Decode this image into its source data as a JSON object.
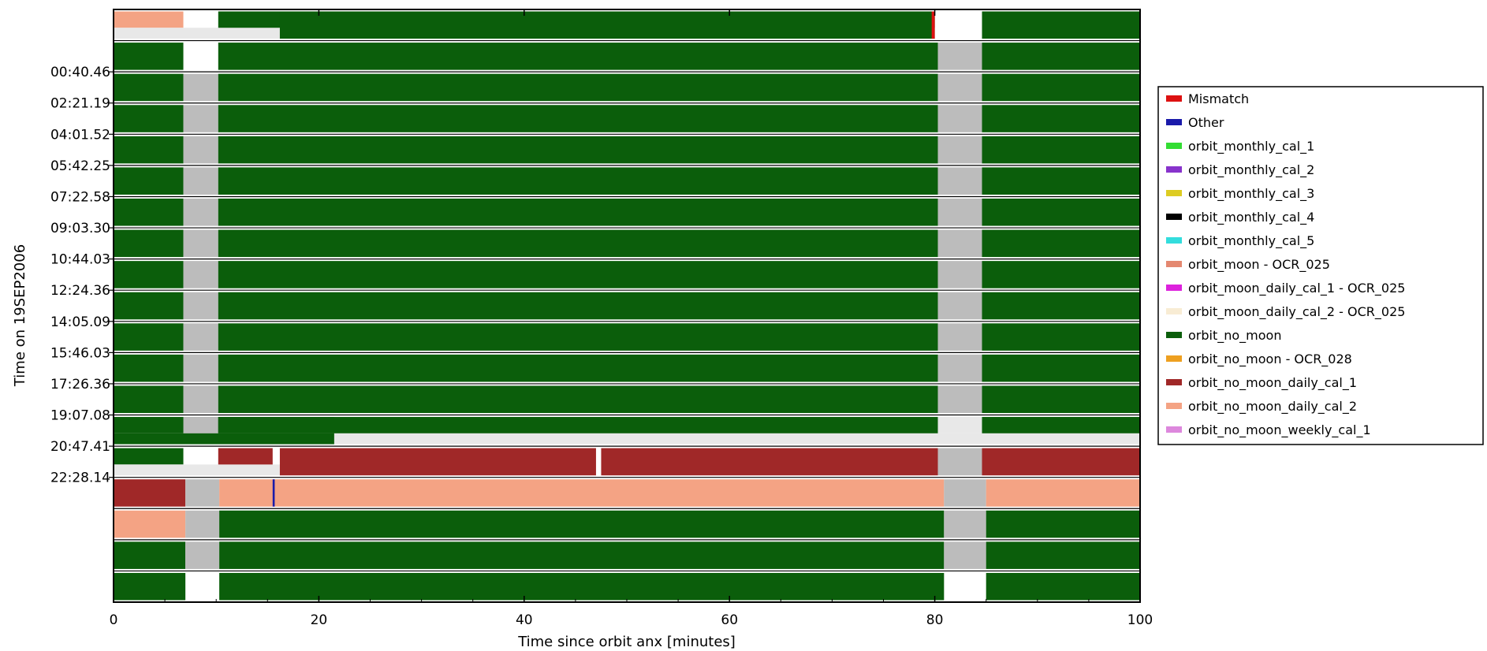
{
  "chart_data": {
    "type": "timeline",
    "title": "",
    "xlabel": "Time since orbit anx [minutes]",
    "ylabel": "Time on 19SEP2006",
    "xlim": [
      0,
      100
    ],
    "xticks": [
      0,
      20,
      40,
      60,
      80,
      100
    ],
    "ytick_labels": [
      "00:40.46",
      "02:21.19",
      "04:01.52",
      "05:42.25",
      "07:22.58",
      "09:03.30",
      "10:44.03",
      "12:24.36",
      "14:05.09",
      "15:46.03",
      "17:26.36",
      "19:07.08",
      "20:47.41",
      "22:28.14"
    ],
    "legend_position": "right",
    "categories": [
      {
        "key": "mismatch",
        "name": "Mismatch",
        "color": "#dd1111"
      },
      {
        "key": "other",
        "name": "Other",
        "color": "#1a1aaa"
      },
      {
        "key": "cal1",
        "name": "orbit_monthly_cal_1",
        "color": "#33dd33"
      },
      {
        "key": "cal2",
        "name": "orbit_monthly_cal_2",
        "color": "#8833cc"
      },
      {
        "key": "cal3",
        "name": "orbit_monthly_cal_3",
        "color": "#ddcc22"
      },
      {
        "key": "cal4",
        "name": "orbit_monthly_cal_4",
        "color": "#000000"
      },
      {
        "key": "cal5",
        "name": "orbit_monthly_cal_5",
        "color": "#33dddd"
      },
      {
        "key": "moon",
        "name": "orbit_moon - OCR_025",
        "color": "#e48870"
      },
      {
        "key": "moondaily1",
        "name": "orbit_moon_daily_cal_1 - OCR_025",
        "color": "#dd22dd"
      },
      {
        "key": "moondaily2",
        "name": "orbit_moon_daily_cal_2 - OCR_025",
        "color": "#f8ecd4"
      },
      {
        "key": "nomoon",
        "name": "orbit_no_moon",
        "color": "#0b5e0b"
      },
      {
        "key": "nomoon28",
        "name": "orbit_no_moon - OCR_028",
        "color": "#eea020"
      },
      {
        "key": "nmd1",
        "name": "orbit_no_moon_daily_cal_1",
        "color": "#a02828"
      },
      {
        "key": "nmd2",
        "name": "orbit_no_moon_daily_cal_2",
        "color": "#f4a384"
      },
      {
        "key": "nmw1",
        "name": "orbit_no_moon_weekly_cal_1",
        "color": "#dd88dd"
      }
    ],
    "gap_colors": {
      "gray": "#bcbcbc",
      "light": "#e8e8e8",
      "white": "#ffffff"
    },
    "rows": [
      {
        "segments": [
          {
            "start": 0,
            "end": 6.8,
            "cat": "nmd2",
            "part": "top"
          },
          {
            "start": 0,
            "end": 16.2,
            "cat": "light",
            "part": "bottom"
          },
          {
            "start": 10.2,
            "end": 80.0,
            "cat": "nomoon",
            "part": "top"
          },
          {
            "start": 16.2,
            "end": 80.0,
            "cat": "nomoon"
          },
          {
            "start": 79.7,
            "end": 80.0,
            "cat": "mismatch"
          },
          {
            "start": 84.6,
            "end": 100.0,
            "cat": "nomoon"
          }
        ]
      },
      {
        "segments": [
          {
            "start": 0,
            "end": 6.8,
            "cat": "nomoon"
          },
          {
            "start": 10.2,
            "end": 80.3,
            "cat": "nomoon"
          },
          {
            "start": 80.3,
            "end": 84.6,
            "cat": "gray"
          },
          {
            "start": 84.6,
            "end": 100.0,
            "cat": "nomoon"
          }
        ]
      },
      {
        "segments": [
          {
            "start": 0,
            "end": 6.8,
            "cat": "nomoon"
          },
          {
            "start": 6.8,
            "end": 10.2,
            "cat": "gray"
          },
          {
            "start": 10.2,
            "end": 80.3,
            "cat": "nomoon"
          },
          {
            "start": 80.3,
            "end": 84.6,
            "cat": "gray"
          },
          {
            "start": 84.6,
            "end": 100.0,
            "cat": "nomoon"
          }
        ]
      },
      {
        "segments": [
          {
            "start": 0,
            "end": 6.8,
            "cat": "nomoon"
          },
          {
            "start": 6.8,
            "end": 10.2,
            "cat": "gray"
          },
          {
            "start": 10.2,
            "end": 80.3,
            "cat": "nomoon"
          },
          {
            "start": 80.3,
            "end": 84.6,
            "cat": "gray"
          },
          {
            "start": 84.6,
            "end": 100.0,
            "cat": "nomoon"
          }
        ]
      },
      {
        "segments": [
          {
            "start": 0,
            "end": 6.8,
            "cat": "nomoon"
          },
          {
            "start": 6.8,
            "end": 10.2,
            "cat": "gray"
          },
          {
            "start": 10.2,
            "end": 80.3,
            "cat": "nomoon"
          },
          {
            "start": 80.3,
            "end": 84.6,
            "cat": "gray"
          },
          {
            "start": 84.6,
            "end": 100.0,
            "cat": "nomoon"
          }
        ]
      },
      {
        "segments": [
          {
            "start": 0,
            "end": 6.8,
            "cat": "nomoon"
          },
          {
            "start": 6.8,
            "end": 10.2,
            "cat": "gray"
          },
          {
            "start": 10.2,
            "end": 80.3,
            "cat": "nomoon"
          },
          {
            "start": 80.3,
            "end": 84.6,
            "cat": "gray"
          },
          {
            "start": 84.6,
            "end": 100.0,
            "cat": "nomoon"
          }
        ]
      },
      {
        "segments": [
          {
            "start": 0,
            "end": 6.8,
            "cat": "nomoon"
          },
          {
            "start": 6.8,
            "end": 10.2,
            "cat": "gray"
          },
          {
            "start": 10.2,
            "end": 80.3,
            "cat": "nomoon"
          },
          {
            "start": 80.3,
            "end": 84.6,
            "cat": "gray"
          },
          {
            "start": 84.6,
            "end": 100.0,
            "cat": "nomoon"
          }
        ]
      },
      {
        "segments": [
          {
            "start": 0,
            "end": 6.8,
            "cat": "nomoon"
          },
          {
            "start": 6.8,
            "end": 10.2,
            "cat": "gray"
          },
          {
            "start": 10.2,
            "end": 80.3,
            "cat": "nomoon"
          },
          {
            "start": 80.3,
            "end": 84.6,
            "cat": "gray"
          },
          {
            "start": 84.6,
            "end": 100.0,
            "cat": "nomoon"
          }
        ]
      },
      {
        "segments": [
          {
            "start": 0,
            "end": 6.8,
            "cat": "nomoon"
          },
          {
            "start": 6.8,
            "end": 10.2,
            "cat": "gray"
          },
          {
            "start": 10.2,
            "end": 80.3,
            "cat": "nomoon"
          },
          {
            "start": 80.3,
            "end": 84.6,
            "cat": "gray"
          },
          {
            "start": 84.6,
            "end": 100.0,
            "cat": "nomoon"
          }
        ]
      },
      {
        "segments": [
          {
            "start": 0,
            "end": 6.8,
            "cat": "nomoon"
          },
          {
            "start": 6.8,
            "end": 10.2,
            "cat": "gray"
          },
          {
            "start": 10.2,
            "end": 80.3,
            "cat": "nomoon"
          },
          {
            "start": 80.3,
            "end": 84.6,
            "cat": "gray"
          },
          {
            "start": 84.6,
            "end": 100.0,
            "cat": "nomoon"
          }
        ]
      },
      {
        "segments": [
          {
            "start": 0,
            "end": 6.8,
            "cat": "nomoon"
          },
          {
            "start": 6.8,
            "end": 10.2,
            "cat": "gray"
          },
          {
            "start": 10.2,
            "end": 80.3,
            "cat": "nomoon"
          },
          {
            "start": 80.3,
            "end": 84.6,
            "cat": "gray"
          },
          {
            "start": 84.6,
            "end": 100.0,
            "cat": "nomoon"
          }
        ]
      },
      {
        "segments": [
          {
            "start": 0,
            "end": 6.8,
            "cat": "nomoon"
          },
          {
            "start": 6.8,
            "end": 10.2,
            "cat": "gray"
          },
          {
            "start": 10.2,
            "end": 80.3,
            "cat": "nomoon"
          },
          {
            "start": 80.3,
            "end": 84.6,
            "cat": "gray"
          },
          {
            "start": 84.6,
            "end": 100.0,
            "cat": "nomoon"
          }
        ]
      },
      {
        "segments": [
          {
            "start": 0,
            "end": 6.8,
            "cat": "nomoon"
          },
          {
            "start": 6.8,
            "end": 10.2,
            "cat": "gray"
          },
          {
            "start": 10.2,
            "end": 80.3,
            "cat": "nomoon"
          },
          {
            "start": 80.3,
            "end": 84.6,
            "cat": "gray"
          },
          {
            "start": 84.6,
            "end": 100.0,
            "cat": "nomoon"
          }
        ]
      },
      {
        "segments": [
          {
            "start": 0,
            "end": 21.5,
            "cat": "nomoon",
            "part": "top"
          },
          {
            "start": 0,
            "end": 21.5,
            "cat": "nomoon",
            "part": "bottom"
          },
          {
            "start": 21.5,
            "end": 100.0,
            "cat": "light",
            "part": "bottom"
          },
          {
            "start": 6.8,
            "end": 10.2,
            "cat": "gray",
            "part": "top"
          },
          {
            "start": 10.2,
            "end": 80.3,
            "cat": "nomoon",
            "part": "top"
          },
          {
            "start": 80.3,
            "end": 84.6,
            "cat": "light",
            "part": "top"
          },
          {
            "start": 84.6,
            "end": 100.0,
            "cat": "nomoon",
            "part": "top"
          }
        ]
      },
      {
        "segments": [
          {
            "start": 0,
            "end": 6.8,
            "cat": "nomoon",
            "part": "top"
          },
          {
            "start": 0,
            "end": 16.2,
            "cat": "light",
            "part": "bottom"
          },
          {
            "start": 10.2,
            "end": 15.5,
            "cat": "nmd1",
            "part": "top"
          },
          {
            "start": 16.2,
            "end": 47.0,
            "cat": "nmd1"
          },
          {
            "start": 47.5,
            "end": 80.3,
            "cat": "nmd1"
          },
          {
            "start": 80.3,
            "end": 84.6,
            "cat": "gray"
          },
          {
            "start": 84.6,
            "end": 100.0,
            "cat": "nmd1"
          }
        ]
      },
      {
        "segments": [
          {
            "start": 0,
            "end": 7.0,
            "cat": "nmd1"
          },
          {
            "start": 7.0,
            "end": 10.3,
            "cat": "gray"
          },
          {
            "start": 10.3,
            "end": 80.9,
            "cat": "nmd2"
          },
          {
            "start": 15.5,
            "end": 15.7,
            "cat": "other"
          },
          {
            "start": 80.9,
            "end": 85.0,
            "cat": "gray"
          },
          {
            "start": 85.0,
            "end": 100.0,
            "cat": "nmd2"
          }
        ]
      },
      {
        "segments": [
          {
            "start": 0,
            "end": 7.0,
            "cat": "nmd2"
          },
          {
            "start": 7.0,
            "end": 10.3,
            "cat": "gray"
          },
          {
            "start": 10.3,
            "end": 80.9,
            "cat": "nomoon"
          },
          {
            "start": 80.9,
            "end": 85.0,
            "cat": "gray"
          },
          {
            "start": 85.0,
            "end": 100.0,
            "cat": "nomoon"
          }
        ]
      },
      {
        "segments": [
          {
            "start": 0,
            "end": 7.0,
            "cat": "nomoon"
          },
          {
            "start": 7.0,
            "end": 10.3,
            "cat": "gray"
          },
          {
            "start": 10.3,
            "end": 80.9,
            "cat": "nomoon"
          },
          {
            "start": 80.9,
            "end": 85.0,
            "cat": "gray"
          },
          {
            "start": 85.0,
            "end": 100.0,
            "cat": "nomoon"
          }
        ]
      },
      {
        "segments": [
          {
            "start": 0,
            "end": 7.0,
            "cat": "nomoon"
          },
          {
            "start": 10.3,
            "end": 80.9,
            "cat": "nomoon"
          },
          {
            "start": 85.0,
            "end": 100.0,
            "cat": "nomoon"
          }
        ]
      }
    ]
  }
}
